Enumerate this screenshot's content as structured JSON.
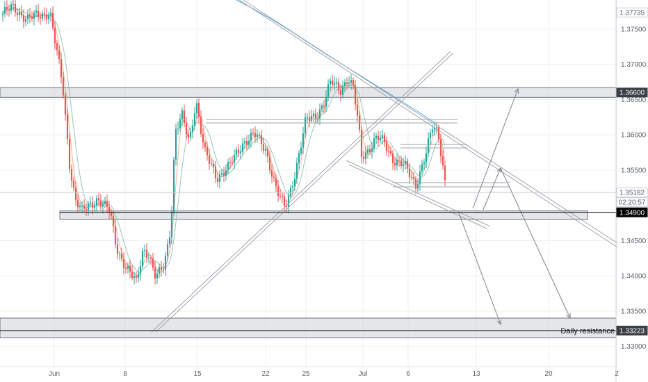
{
  "chart_data": {
    "type": "candlestick",
    "y_ticks": [
      "1.37500",
      "1.37000",
      "1.36500",
      "1.36000",
      "1.35500",
      "1.34500",
      "1.34000",
      "1.33500",
      "1.33000"
    ],
    "x_ticks": [
      "Jun",
      "8",
      "15",
      "22",
      "25",
      "Jul",
      "6",
      "13",
      "20",
      "2"
    ],
    "price_labels": [
      {
        "id": "top",
        "text": "1.37735",
        "value": 1.37735,
        "style": "plain"
      },
      {
        "id": "zone-upper",
        "text": "1.36600",
        "value": 1.366,
        "style": "dark"
      },
      {
        "id": "last",
        "text": "1.35182",
        "value": 1.35182,
        "style": "plain"
      },
      {
        "id": "countdown",
        "text": "02:20:57",
        "value": 1.35182,
        "style": "plain-below"
      },
      {
        "id": "support",
        "text": "1.34900",
        "value": 1.349,
        "style": "black"
      },
      {
        "id": "zone-lower",
        "text": "1.33223",
        "value": 1.33223,
        "style": "dark"
      }
    ],
    "annotations": [
      {
        "text": "Daily resistance",
        "value": 1.33223
      }
    ],
    "zones": [
      {
        "name": "upper-zone",
        "y_top": 1.3667,
        "y_bottom": 1.3653
      },
      {
        "name": "support-zone",
        "y_top": 1.3492,
        "y_bottom": 1.348
      },
      {
        "name": "lower-zone",
        "y_top": 1.334,
        "y_bottom": 1.3312
      }
    ],
    "colors": {
      "up": "#26a69a",
      "down": "#ef5350",
      "ma_fast": "#f4a58a",
      "ma_slow": "#8fbfa8",
      "ma_long": "#4da3e0",
      "lines": "#9ea3aa",
      "zone_fill": "#d5d8dd",
      "zone_stroke": "#6b7079"
    }
  }
}
